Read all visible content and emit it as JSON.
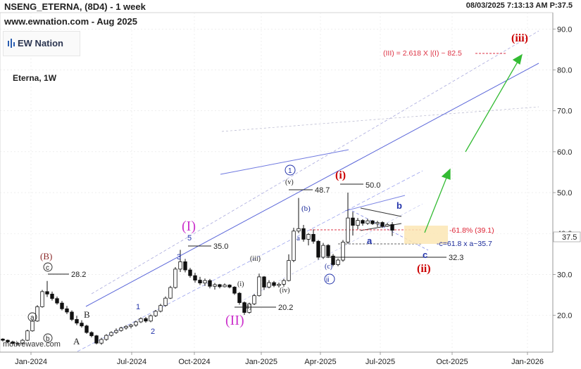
{
  "header": {
    "title": "NSENG_ETERNA, (8D4) - 1 week",
    "site": "www.ewnation.com   - Aug 2025",
    "timestamp": "08/03/2025 7:13:13 AM  P:37.5",
    "instrument": "Eterna, 1W",
    "logo_text": "EW Nation",
    "watermark": "motivewave.com"
  },
  "colors": {
    "wave_blue": "#2233aa",
    "wave_red": "#cc0000",
    "wave_magenta": "#cc33cc",
    "channel_solid": "#5a66d9",
    "channel_dashed": "#9aa2ee",
    "red_dash": "#dd3344",
    "green_arrow": "#33bb33",
    "box_fill": "#fbe6b4"
  },
  "chart_data": {
    "type": "candlestick",
    "yaxis": {
      "min": 11,
      "max": 94,
      "ticks": [
        "20.0",
        "30.0",
        "40.0",
        "50.0",
        "60.0",
        "70.0",
        "80.0",
        "90.0"
      ],
      "current_price": "37.5"
    },
    "xaxis": {
      "labels": [
        "Jan-2024",
        "Jul-2024",
        "Oct-2024",
        "Jan-2025",
        "Apr-2025",
        "Jul-2025",
        "Oct-2025",
        "Jan-2026"
      ]
    },
    "candles": [
      [
        14.2,
        14.4,
        13.6,
        13.9
      ],
      [
        13.9,
        14.1,
        13.2,
        13.5
      ],
      [
        13.5,
        13.8,
        12.8,
        13.1
      ],
      [
        13.1,
        13.5,
        12.6,
        13.2
      ],
      [
        13.2,
        14.2,
        13.0,
        13.9
      ],
      [
        13.9,
        16.5,
        13.7,
        16.2
      ],
      [
        16.2,
        18.9,
        16.0,
        18.6
      ],
      [
        18.6,
        22.5,
        18.4,
        22.1
      ],
      [
        22.1,
        26.2,
        21.9,
        25.8
      ],
      [
        25.8,
        28.4,
        24.5,
        25.2
      ],
      [
        25.2,
        25.8,
        23.6,
        24.1
      ],
      [
        24.1,
        24.6,
        22.6,
        23.0
      ],
      [
        23.0,
        23.5,
        21.2,
        21.6
      ],
      [
        21.6,
        22.3,
        20.3,
        20.8
      ],
      [
        20.8,
        21.2,
        18.6,
        19.0
      ],
      [
        19.0,
        19.9,
        17.6,
        18.1
      ],
      [
        18.1,
        18.8,
        17.0,
        17.4
      ],
      [
        17.4,
        17.7,
        15.5,
        15.8
      ],
      [
        15.8,
        16.1,
        14.6,
        15.0
      ],
      [
        15.0,
        15.2,
        12.9,
        13.2
      ],
      [
        13.2,
        14.5,
        12.8,
        14.1
      ],
      [
        14.1,
        15.4,
        13.8,
        15.1
      ],
      [
        15.1,
        16.1,
        14.8,
        15.8
      ],
      [
        15.8,
        16.8,
        15.5,
        16.3
      ],
      [
        16.3,
        17.2,
        16.0,
        16.9
      ],
      [
        16.9,
        17.6,
        16.5,
        17.3
      ],
      [
        17.3,
        17.9,
        16.8,
        17.6
      ],
      [
        17.6,
        18.7,
        17.2,
        18.4
      ],
      [
        18.4,
        19.5,
        18.1,
        19.2
      ],
      [
        19.2,
        19.6,
        18.2,
        18.6
      ],
      [
        18.6,
        20.2,
        18.3,
        19.9
      ],
      [
        19.9,
        21.3,
        19.6,
        21.0
      ],
      [
        21.0,
        22.8,
        20.7,
        22.4
      ],
      [
        22.4,
        24.6,
        22.1,
        24.2
      ],
      [
        24.2,
        27.2,
        24.0,
        26.8
      ],
      [
        26.8,
        31.8,
        26.5,
        31.3
      ],
      [
        31.3,
        36.0,
        30.6,
        33.1
      ],
      [
        33.1,
        33.8,
        30.5,
        31.1
      ],
      [
        31.1,
        31.6,
        29.2,
        29.7
      ],
      [
        29.7,
        30.4,
        28.0,
        28.6
      ],
      [
        28.6,
        29.4,
        27.4,
        27.9
      ],
      [
        27.9,
        29.0,
        27.2,
        28.5
      ],
      [
        28.5,
        28.9,
        26.6,
        27.1
      ],
      [
        27.1,
        27.9,
        26.3,
        27.5
      ],
      [
        27.5,
        27.7,
        26.6,
        27.0
      ],
      [
        27.0,
        27.8,
        26.8,
        27.4
      ],
      [
        27.4,
        27.6,
        26.6,
        26.9
      ],
      [
        26.9,
        27.1,
        25.0,
        25.4
      ],
      [
        25.4,
        25.7,
        22.6,
        23.1
      ],
      [
        23.1,
        23.4,
        20.1,
        20.7
      ],
      [
        20.7,
        23.1,
        20.4,
        22.8
      ],
      [
        22.8,
        25.2,
        22.5,
        24.8
      ],
      [
        24.8,
        30.2,
        24.6,
        29.4
      ],
      [
        29.4,
        29.6,
        26.2,
        26.9
      ],
      [
        26.9,
        28.6,
        26.6,
        28.0
      ],
      [
        28.0,
        28.4,
        26.9,
        27.3
      ],
      [
        27.3,
        28.0,
        26.8,
        27.6
      ],
      [
        27.6,
        28.9,
        27.0,
        28.5
      ],
      [
        28.5,
        34.9,
        28.3,
        33.4
      ],
      [
        33.4,
        41.4,
        33.0,
        40.6
      ],
      [
        40.6,
        48.7,
        40.1,
        41.2
      ],
      [
        41.2,
        42.1,
        38.0,
        38.6
      ],
      [
        38.6,
        40.1,
        37.1,
        39.8
      ],
      [
        39.8,
        41.0,
        37.5,
        38.1
      ],
      [
        38.1,
        38.4,
        33.6,
        34.2
      ],
      [
        34.2,
        37.7,
        33.8,
        37.1
      ],
      [
        37.1,
        37.4,
        34.0,
        34.5
      ],
      [
        34.5,
        35.0,
        32.0,
        32.4
      ],
      [
        32.4,
        33.9,
        32.0,
        33.5
      ],
      [
        33.5,
        38.4,
        33.1,
        37.9
      ],
      [
        37.9,
        50.0,
        37.5,
        43.8
      ],
      [
        43.8,
        45.3,
        39.5,
        42.0
      ],
      [
        42.0,
        43.8,
        41.0,
        43.2
      ],
      [
        43.2,
        43.5,
        41.9,
        42.5
      ],
      [
        42.5,
        43.6,
        42.1,
        43.1
      ],
      [
        43.1,
        43.3,
        42.1,
        42.4
      ],
      [
        42.4,
        43.1,
        41.6,
        42.7
      ],
      [
        42.7,
        43.0,
        41.4,
        41.8
      ],
      [
        41.8,
        42.6,
        41.6,
        42.2
      ],
      [
        42.2,
        42.8,
        39.4,
        40.8
      ]
    ],
    "price_labels": [
      {
        "text": "28.2",
        "value": 28.2
      },
      {
        "text": "35.0",
        "value": 35.0
      },
      {
        "text": "20.2",
        "value": 20.2
      },
      {
        "text": "48.7",
        "value": 48.7
      },
      {
        "text": "50.0",
        "value": 50.0
      },
      {
        "text": "32.3",
        "value": 32.3
      }
    ],
    "wave_labels": {
      "I_major": "(I)",
      "II_major": "(II)",
      "i_red": "(i)",
      "ii_red": "(ii)",
      "iii_red": "(iii)",
      "B_paren": "(B)",
      "B": "B",
      "A": "A",
      "C_circ": "c",
      "w1": "1",
      "w2": "2",
      "w3": "3",
      "w5": "5",
      "circ1": "1",
      "circ_ii": "ii",
      "circ_c": "(c)",
      "a_circ": "a",
      "b_circ": "b",
      "iii_small": "(iii)",
      "i_small": "(i)",
      "ii_small": "(ii)",
      "iv_small": "(iv)",
      "v_small": "(v)",
      "a_paren": "a",
      "b_paren": "(b)",
      "a_blue": "a",
      "b_blue": "b",
      "c_blue": "c"
    },
    "annotations": {
      "target_iii": "(III) = 2.618 X |(I) ~ 82.5",
      "fib_618": "-61.8% (39.1)",
      "c_target": "-c=61.8 x a~35.7"
    }
  }
}
